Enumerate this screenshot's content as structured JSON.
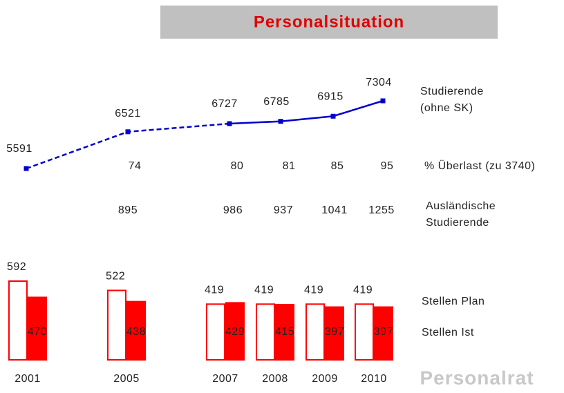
{
  "title": "Personalsituation",
  "watermark": "Personalrat",
  "chart_data": {
    "type": "combo",
    "categories": [
      "2001",
      "2005",
      "2007",
      "2008",
      "2009",
      "2010"
    ],
    "students": {
      "name_lines": [
        "Studierende",
        "(ohne SK)"
      ],
      "color": "#0000cc",
      "values": [
        5591,
        6521,
        6727,
        6785,
        6915,
        7304
      ]
    },
    "overload": {
      "name": "% Überlast (zu 3740)",
      "values": [
        null,
        74,
        80,
        81,
        85,
        95
      ]
    },
    "foreign": {
      "name_lines": [
        "Ausländische",
        "Studierende"
      ],
      "values": [
        null,
        895,
        986,
        937,
        1041,
        1255
      ]
    },
    "series": [
      {
        "name": "Stellen Plan",
        "color": "#ff0000",
        "fill": "#ffffff",
        "values": [
          592,
          522,
          419,
          419,
          419,
          419
        ]
      },
      {
        "name": "Stellen Ist",
        "color": "#ff0000",
        "fill": "#ff0000",
        "values": [
          470,
          438,
          429,
          415,
          397,
          397
        ]
      }
    ]
  }
}
